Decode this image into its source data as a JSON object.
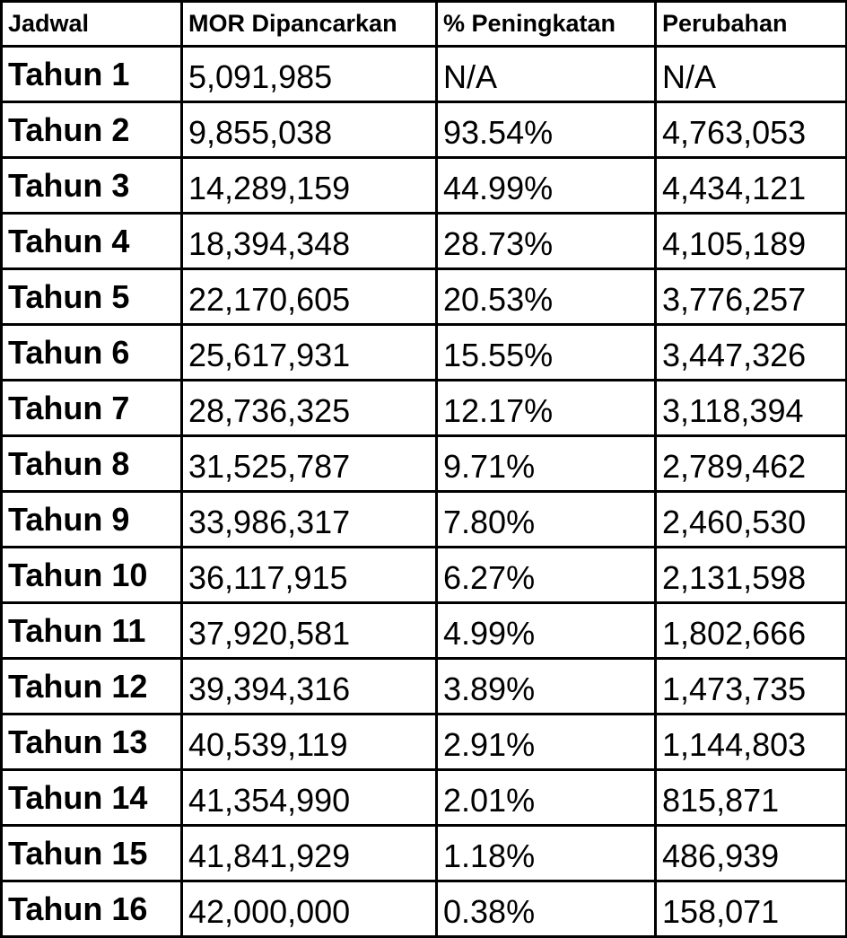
{
  "table": {
    "headers": [
      "Jadwal",
      "MOR Dipancarkan",
      "% Peningkatan",
      "Perubahan"
    ],
    "rows": [
      [
        "Tahun 1",
        "5,091,985",
        "N/A",
        "N/A"
      ],
      [
        "Tahun 2",
        "9,855,038",
        "93.54%",
        "4,763,053"
      ],
      [
        "Tahun 3",
        "14,289,159",
        "44.99%",
        "4,434,121"
      ],
      [
        "Tahun 4",
        "18,394,348",
        "28.73%",
        "4,105,189"
      ],
      [
        "Tahun 5",
        "22,170,605",
        "20.53%",
        "3,776,257"
      ],
      [
        "Tahun 6",
        "25,617,931",
        "15.55%",
        "3,447,326"
      ],
      [
        "Tahun 7",
        "28,736,325",
        "12.17%",
        "3,118,394"
      ],
      [
        "Tahun 8",
        "31,525,787",
        "9.71%",
        "2,789,462"
      ],
      [
        "Tahun 9",
        "33,986,317",
        "7.80%",
        "2,460,530"
      ],
      [
        "Tahun 10",
        "36,117,915",
        "6.27%",
        "2,131,598"
      ],
      [
        "Tahun 11",
        "37,920,581",
        "4.99%",
        "1,802,666"
      ],
      [
        "Tahun 12",
        "39,394,316",
        "3.89%",
        "1,473,735"
      ],
      [
        "Tahun 13",
        "40,539,119",
        "2.91%",
        "1,144,803"
      ],
      [
        "Tahun 14",
        "41,354,990",
        "2.01%",
        "815,871"
      ],
      [
        "Tahun 15",
        "41,841,929",
        "1.18%",
        "486,939"
      ],
      [
        "Tahun 16",
        "42,000,000",
        "0.38%",
        "158,071"
      ]
    ]
  }
}
